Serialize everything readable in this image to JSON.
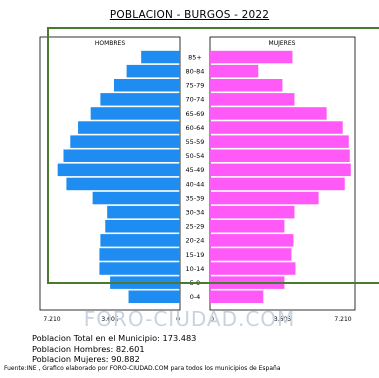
{
  "title": "POBLACION - BURGOS - 2022",
  "chart_data": {
    "type": "bar",
    "orientation": "horizontal-pyramid",
    "title": "POBLACION - BURGOS - 2022",
    "categories": [
      "85+",
      "80-84",
      "75-79",
      "70-74",
      "65-69",
      "60-64",
      "55-59",
      "50-54",
      "45-49",
      "40-44",
      "35-39",
      "30-34",
      "25-29",
      "20-24",
      "15-19",
      "10-14",
      "5-9",
      "0-4"
    ],
    "series": [
      {
        "name": "HOMBRES",
        "color": "#1e8cf0",
        "values": [
          2000,
          2750,
          3400,
          4100,
          4600,
          5250,
          5650,
          6000,
          6300,
          5850,
          4500,
          3750,
          3850,
          4100,
          4150,
          4150,
          3600,
          2650
        ]
      },
      {
        "name": "MUJERES",
        "color": "#ff5af7",
        "values": [
          4100,
          2400,
          3600,
          4200,
          5800,
          6600,
          6900,
          6950,
          7000,
          6700,
          5400,
          4200,
          3700,
          4150,
          4050,
          4250,
          3700,
          2650
        ]
      }
    ],
    "xlim": [
      0,
      7210
    ],
    "ticks": {
      "left": [
        "7.210",
        "3.605",
        "0"
      ],
      "right": [
        "0",
        "3.605",
        "7.210"
      ]
    },
    "legend": [
      "HOMBRES",
      "MUJERES"
    ]
  },
  "watermark": "FORO-CIUDAD.COM",
  "stats": {
    "total": "Poblacion Total en el Municipio: 173.483",
    "men": "Poblacion Hombres: 82.601",
    "women": "Poblacion Mujeres: 90.882"
  },
  "source": "Fuente:INE , Grafico elaborado por FORO-CIUDAD.COM para todos los municipios de España"
}
